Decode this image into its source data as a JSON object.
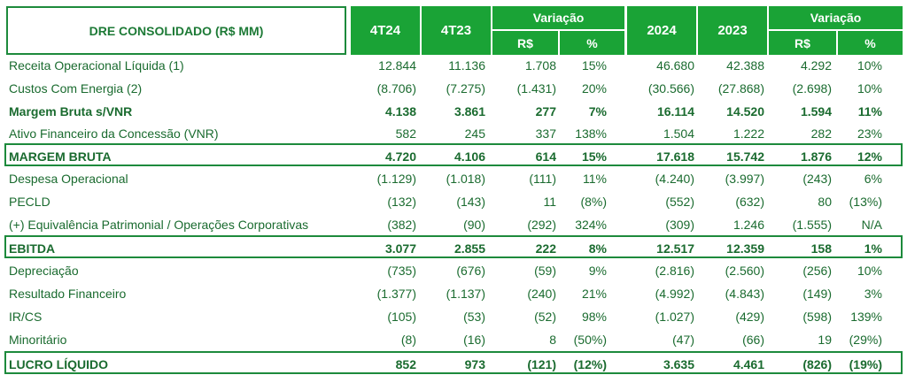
{
  "header": {
    "title": "DRE CONSOLIDADO (R$ MM)",
    "col_4t24": "4T24",
    "col_4t23": "4T23",
    "variacao1": "Variação",
    "rs1": "R$",
    "pct1": "%",
    "col_2024": "2024",
    "col_2023": "2023",
    "variacao2": "Variação",
    "rs2": "R$",
    "pct2": "%"
  },
  "rows": [
    {
      "label": "Receita  Operacional Líquida (1)",
      "v": [
        "12.844",
        "11.136",
        "1.708",
        "15%",
        "46.680",
        "42.388",
        "4.292",
        "10%"
      ],
      "style": "normal"
    },
    {
      "label": "Custos Com Energia (2)",
      "v": [
        "(8.706)",
        "(7.275)",
        "(1.431)",
        "20%",
        "(30.566)",
        "(27.868)",
        "(2.698)",
        "10%"
      ],
      "style": "normal"
    },
    {
      "label": "Margem Bruta s/VNR",
      "v": [
        "4.138",
        "3.861",
        "277",
        "7%",
        "16.114",
        "14.520",
        "1.594",
        "11%"
      ],
      "style": "bold"
    },
    {
      "label": "Ativo Financeiro da Concessão (VNR)",
      "v": [
        "582",
        "245",
        "337",
        "138%",
        "1.504",
        "1.222",
        "282",
        "23%"
      ],
      "style": "normal"
    },
    {
      "label": "MARGEM BRUTA",
      "v": [
        "4.720",
        "4.106",
        "614",
        "15%",
        "17.618",
        "15.742",
        "1.876",
        "12%"
      ],
      "style": "boxed"
    },
    {
      "label": "Despesa Operacional",
      "v": [
        "(1.129)",
        "(1.018)",
        "(111)",
        "11%",
        "(4.240)",
        "(3.997)",
        "(243)",
        "6%"
      ],
      "style": "normal"
    },
    {
      "label": "PECLD",
      "v": [
        "(132)",
        "(143)",
        "11",
        "(8%)",
        "(552)",
        "(632)",
        "80",
        "(13%)"
      ],
      "style": "normal"
    },
    {
      "label": "(+) Equivalência Patrimonial / Operações Corporativas",
      "v": [
        "(382)",
        "(90)",
        "(292)",
        "324%",
        "(309)",
        "1.246",
        "(1.555)",
        "N/A"
      ],
      "style": "normal"
    },
    {
      "label": "EBITDA",
      "v": [
        "3.077",
        "2.855",
        "222",
        "8%",
        "12.517",
        "12.359",
        "158",
        "1%"
      ],
      "style": "boxed"
    },
    {
      "label": "Depreciação",
      "v": [
        "(735)",
        "(676)",
        "(59)",
        "9%",
        "(2.816)",
        "(2.560)",
        "(256)",
        "10%"
      ],
      "style": "normal"
    },
    {
      "label": "Resultado Financeiro",
      "v": [
        "(1.377)",
        "(1.137)",
        "(240)",
        "21%",
        "(4.992)",
        "(4.843)",
        "(149)",
        "3%"
      ],
      "style": "normal"
    },
    {
      "label": "IR/CS",
      "v": [
        "(105)",
        "(53)",
        "(52)",
        "98%",
        "(1.027)",
        "(429)",
        "(598)",
        "139%"
      ],
      "style": "normal"
    },
    {
      "label": "Minoritário",
      "v": [
        "(8)",
        "(16)",
        "8",
        "(50%)",
        "(47)",
        "(66)",
        "19",
        "(29%)"
      ],
      "style": "normal"
    },
    {
      "label": "LUCRO LÍQUIDO",
      "v": [
        "852",
        "973",
        "(121)",
        "(12%)",
        "3.635",
        "4.461",
        "(826)",
        "(19%)"
      ],
      "style": "boxed"
    }
  ]
}
